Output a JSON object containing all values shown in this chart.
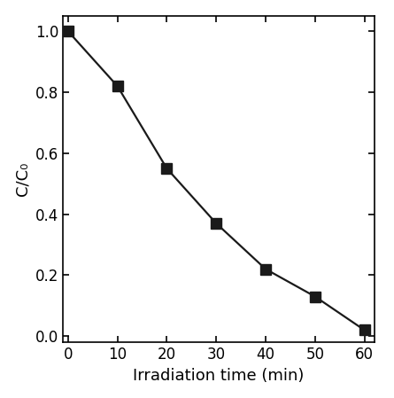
{
  "x": [
    0,
    10,
    20,
    30,
    40,
    50,
    60
  ],
  "y": [
    1.0,
    0.82,
    0.55,
    0.37,
    0.22,
    0.13,
    0.02
  ],
  "xlabel": "Irradiation time (min)",
  "ylabel": "C/C₀",
  "xlim": [
    -1,
    62
  ],
  "ylim": [
    -0.02,
    1.05
  ],
  "xticks": [
    0,
    10,
    20,
    30,
    40,
    50,
    60
  ],
  "yticks": [
    0.0,
    0.2,
    0.4,
    0.6,
    0.8,
    1.0
  ],
  "line_color": "#1a1a1a",
  "marker": "s",
  "marker_color": "#1a1a1a",
  "marker_size": 8,
  "linewidth": 1.6,
  "background_color": "#ffffff",
  "xlabel_fontsize": 13,
  "ylabel_fontsize": 13,
  "tick_fontsize": 12
}
